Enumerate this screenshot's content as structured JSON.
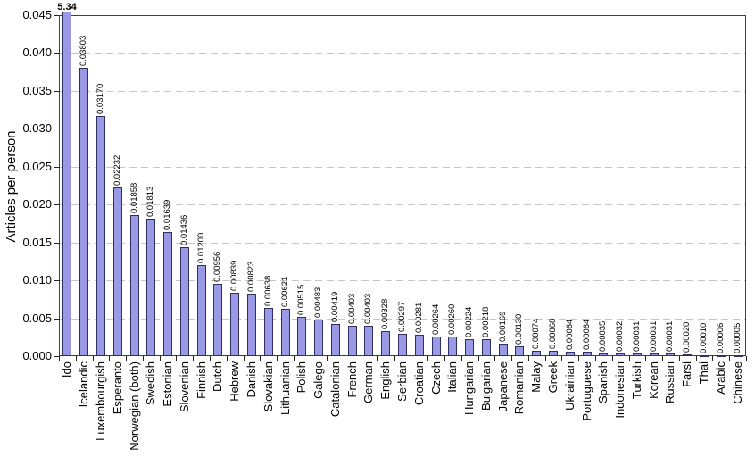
{
  "chart_data": {
    "type": "bar",
    "title": "",
    "xlabel": "",
    "ylabel": "Articles per person",
    "ylim": [
      0,
      0.045
    ],
    "ytick_step": 0.005,
    "ytick_labels": [
      "0.000",
      "0.005",
      "0.010",
      "0.015",
      "0.020",
      "0.025",
      "0.030",
      "0.035",
      "0.040",
      "0.045"
    ],
    "grid": "horizontal-dashed",
    "legend": "none",
    "bar_fill_color": "#9999e6",
    "bar_border_color": "#2f2f63",
    "gridline_color": "#c6c6c6",
    "axis_color": "#3f3f3f",
    "categories": [
      "Ido",
      "Icelandic",
      "Luxembourgish",
      "Esperanto",
      "Norwegian (both)",
      "Swedish",
      "Estonian",
      "Slovenian",
      "Finnish",
      "Dutch",
      "Hebrew",
      "Danish",
      "Slovakian",
      "Lithuanian",
      "Polish",
      "Galego",
      "Catalonian",
      "French",
      "German",
      "English",
      "Serbian",
      "Croatian",
      "Czech",
      "Italian",
      "Hungarian",
      "Bulgarian",
      "Japanese",
      "Romanian",
      "Malay",
      "Greek",
      "Ukrainian",
      "Portuguese",
      "Spanish",
      "Indonesian",
      "Turkish",
      "Korean",
      "Russian",
      "Farsi",
      "Thai",
      "Arabic",
      "Chinese"
    ],
    "values": [
      5.34,
      0.03803,
      0.0317,
      0.02232,
      0.01858,
      0.01813,
      0.01639,
      0.01436,
      0.012,
      0.00956,
      0.00839,
      0.00823,
      0.00638,
      0.00621,
      0.00515,
      0.00483,
      0.00419,
      0.00403,
      0.00403,
      0.00328,
      0.00297,
      0.00281,
      0.00264,
      0.0026,
      0.00224,
      0.00218,
      0.00169,
      0.0013,
      0.00074,
      0.00068,
      0.00064,
      0.00064,
      0.00035,
      0.00032,
      0.00031,
      0.00031,
      0.00031,
      0.0002,
      0.0001,
      6e-05,
      5e-05
    ],
    "value_labels": [
      "5.34",
      "0.03803",
      "0.03170",
      "0.02232",
      "0.01858",
      "0.01813",
      "0.01639",
      "0.01436",
      "0.01200",
      "0.00956",
      "0.00839",
      "0.00823",
      "0.00638",
      "0.00621",
      "0.00515",
      "0.00483",
      "0.00419",
      "0.00403",
      "0.00403",
      "0.00328",
      "0.00297",
      "0.00281",
      "0.00264",
      "0.00260",
      "0.00224",
      "0.00218",
      "0.00169",
      "0.00130",
      "0.00074",
      "0.00068",
      "0.00064",
      "0.00064",
      "0.00035",
      "0.00032",
      "0.00031",
      "0.00031",
      "0.00031",
      "0.00020",
      "0.00010",
      "0.00006",
      "0.00005"
    ],
    "clipped_bar": {
      "category": "Ido",
      "label": "5.34",
      "note": "bar exceeds y-axis maximum and is clipped at the top of the plot"
    }
  }
}
